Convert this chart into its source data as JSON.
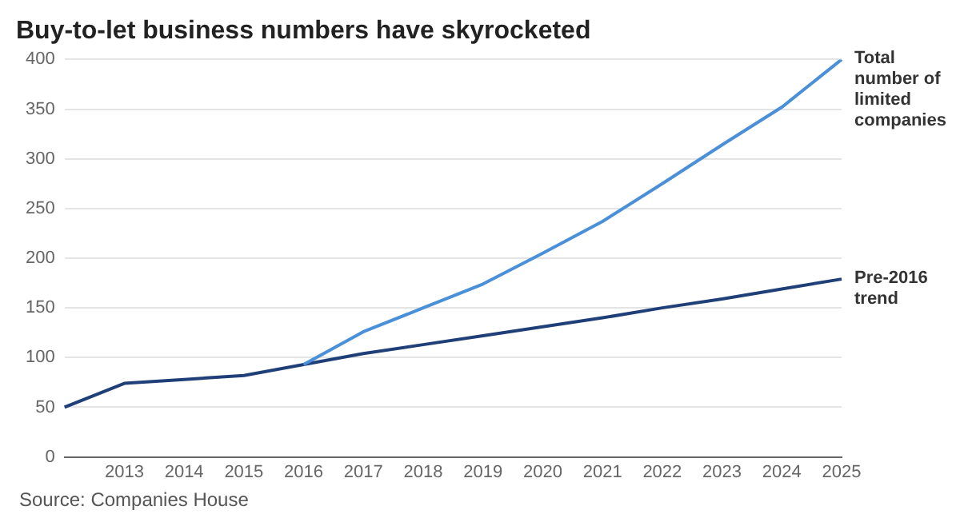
{
  "chart_data": {
    "type": "line",
    "title": "Buy-to-let business numbers have skyrocketed",
    "annotations": [
      "Source: Companies House"
    ],
    "categories": [
      null,
      "2013",
      "2014",
      "2015",
      "2016",
      "2017",
      "2018",
      "2019",
      "2020",
      "2021",
      "2022",
      "2023",
      "2024",
      "2025"
    ],
    "series": [
      {
        "name": "Total number of limited companies",
        "color": "#4a90d9",
        "values": [
          null,
          null,
          null,
          null,
          93,
          126,
          150,
          174,
          205,
          237,
          275,
          314,
          352,
          400
        ]
      },
      {
        "name": "Pre-2016 trend",
        "color": "#1f3f78",
        "values": [
          50,
          74,
          78,
          82,
          93,
          104,
          113,
          122,
          131,
          140,
          150,
          159,
          169,
          179
        ]
      }
    ],
    "ylim": [
      0,
      400
    ],
    "yticks": [
      0,
      50,
      100,
      150,
      200,
      250,
      300,
      350,
      400
    ],
    "grid": "y",
    "legend": false,
    "marker": "none",
    "line_style": "solid"
  }
}
